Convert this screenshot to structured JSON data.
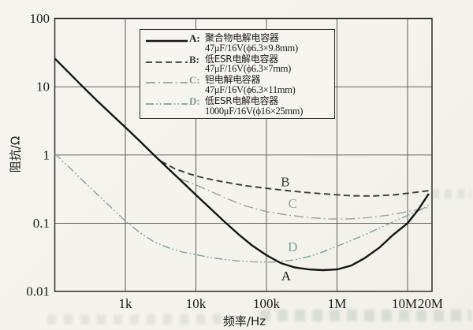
{
  "page": {
    "background": "#f6f5ef"
  },
  "chart_data": {
    "type": "line",
    "title": "",
    "xlabel": "频率/Hz",
    "ylabel": "阻抗/Ω",
    "x_scale": "log",
    "y_scale": "log",
    "xlim": [
      100,
      22000000
    ],
    "ylim": [
      0.01,
      100
    ],
    "grid": true,
    "legend_position": "top-center-inside",
    "x_ticks": [
      {
        "value": 1000,
        "label": "1k",
        "grid": true,
        "dx": 0
      },
      {
        "value": 10000,
        "label": "10k",
        "grid": true,
        "dx": 0
      },
      {
        "value": 100000,
        "label": "100k",
        "grid": true,
        "dx": 0
      },
      {
        "value": 1000000,
        "label": "1M",
        "grid": true,
        "dx": 0
      },
      {
        "value": 10000000,
        "label": "10M",
        "grid": true,
        "dx": -4
      },
      {
        "value": 20000000,
        "label": "20M",
        "grid": false,
        "dx": 2
      }
    ],
    "y_ticks": [
      {
        "value": 100,
        "label": "100",
        "grid": false
      },
      {
        "value": 10,
        "label": "10",
        "grid": true
      },
      {
        "value": 1,
        "label": "1",
        "grid": true
      },
      {
        "value": 0.1,
        "label": "0.1",
        "grid": true
      },
      {
        "value": 0.01,
        "label": "0.01",
        "grid": false
      }
    ],
    "series": [
      {
        "id": "D",
        "name": "低ESR电解电容器 1000μF/16V(ϕ16×25mm)",
        "color": "#7aa798",
        "style": "dashdotdot",
        "width": 1.4,
        "points": [
          [
            100,
            1.05
          ],
          [
            160,
            0.66
          ],
          [
            250,
            0.42
          ],
          [
            400,
            0.265
          ],
          [
            630,
            0.17
          ],
          [
            1000,
            0.108
          ],
          [
            1600,
            0.073
          ],
          [
            2500,
            0.054
          ],
          [
            4000,
            0.044
          ],
          [
            6300,
            0.038
          ],
          [
            10000,
            0.0345
          ],
          [
            16000,
            0.0315
          ],
          [
            25000,
            0.0295
          ],
          [
            40000,
            0.028
          ],
          [
            63000,
            0.0272
          ],
          [
            100000,
            0.0268
          ],
          [
            160000,
            0.0272
          ],
          [
            250000,
            0.029
          ],
          [
            400000,
            0.0325
          ],
          [
            630000,
            0.038
          ],
          [
            1000000,
            0.046
          ],
          [
            1600000,
            0.056
          ],
          [
            2500000,
            0.068
          ],
          [
            4000000,
            0.085
          ],
          [
            6300000,
            0.105
          ],
          [
            10000000,
            0.13
          ],
          [
            16000000,
            0.16
          ],
          [
            20000000,
            0.185
          ]
        ]
      },
      {
        "id": "C",
        "name": "钽电解电容器 47μF/16V(ϕ6.3×11mm)",
        "color": "#98a29b",
        "style": "dashdot",
        "width": 1.4,
        "points": [
          [
            6000,
            0.445
          ],
          [
            8000,
            0.4
          ],
          [
            12500,
            0.33
          ],
          [
            20000,
            0.265
          ],
          [
            32000,
            0.215
          ],
          [
            50000,
            0.18
          ],
          [
            100000,
            0.148
          ],
          [
            200000,
            0.132
          ],
          [
            400000,
            0.121
          ],
          [
            800000,
            0.115
          ],
          [
            1600000,
            0.116
          ],
          [
            3200000,
            0.122
          ],
          [
            6300000,
            0.135
          ],
          [
            10000000,
            0.148
          ],
          [
            20000000,
            0.17
          ]
        ]
      },
      {
        "id": "B",
        "name": "低ESR电解电容器 47μF/16V(ϕ6.3×7mm)",
        "color": "#3c3c3c",
        "style": "dashed",
        "width": 1.9,
        "points": [
          [
            3200,
            0.81
          ],
          [
            5000,
            0.63
          ],
          [
            8000,
            0.53
          ],
          [
            12500,
            0.465
          ],
          [
            20000,
            0.42
          ],
          [
            32000,
            0.385
          ],
          [
            50000,
            0.355
          ],
          [
            100000,
            0.325
          ],
          [
            200000,
            0.3
          ],
          [
            400000,
            0.28
          ],
          [
            800000,
            0.265
          ],
          [
            1600000,
            0.252
          ],
          [
            3200000,
            0.25
          ],
          [
            6300000,
            0.26
          ],
          [
            10000000,
            0.275
          ],
          [
            20000000,
            0.3
          ]
        ]
      },
      {
        "id": "A",
        "name": "聚合物电解电容器 47μF/16V(ϕ6.3×9.8mm)",
        "color": "#151515",
        "style": "solid",
        "width": 2.4,
        "points": [
          [
            100,
            26
          ],
          [
            150,
            17
          ],
          [
            250,
            10
          ],
          [
            400,
            6.2
          ],
          [
            700,
            3.6
          ],
          [
            1000,
            2.55
          ],
          [
            1600,
            1.6
          ],
          [
            2500,
            1.02
          ],
          [
            4000,
            0.64
          ],
          [
            6300,
            0.41
          ],
          [
            10000,
            0.26
          ],
          [
            16000,
            0.165
          ],
          [
            25000,
            0.107
          ],
          [
            40000,
            0.069
          ],
          [
            63000,
            0.047
          ],
          [
            100000,
            0.034
          ],
          [
            160000,
            0.026
          ],
          [
            250000,
            0.0225
          ],
          [
            400000,
            0.021
          ],
          [
            630000,
            0.0205
          ],
          [
            1000000,
            0.021
          ],
          [
            1600000,
            0.024
          ],
          [
            2500000,
            0.031
          ],
          [
            4000000,
            0.044
          ],
          [
            6300000,
            0.068
          ],
          [
            10000000,
            0.1
          ],
          [
            14000000,
            0.155
          ],
          [
            20000000,
            0.27
          ]
        ]
      }
    ],
    "curve_labels": [
      {
        "text": "B",
        "f": 185000,
        "z": 0.35,
        "color": "#3c3c3c"
      },
      {
        "text": "C",
        "f": 235000,
        "z": 0.167,
        "color": "#98a29b"
      },
      {
        "text": "D",
        "f": 235000,
        "z": 0.0388,
        "color": "#7aa798"
      },
      {
        "text": "A",
        "f": 190000,
        "z": 0.0145,
        "color": "#151515"
      }
    ]
  },
  "legend": {
    "entries": [
      {
        "key": "A:",
        "name": "聚合物电解电容器",
        "spec": "47μF/16V(ϕ6.3×9.8mm)",
        "style": "solid",
        "line_color": "#151515",
        "key_color": "#222222"
      },
      {
        "key": "B:",
        "name": "低ESR电解电容器",
        "spec": "47μF/16V(ϕ6.3×7mm)",
        "style": "dashed",
        "line_color": "#3c3c3c",
        "key_color": "#3a3a3a"
      },
      {
        "key": "C:",
        "name": "钽电解电容器",
        "spec": "47μF/16V(ϕ6.3×11mm)",
        "style": "dashdot",
        "line_color": "#98a29b",
        "key_color": "#8b968f"
      },
      {
        "key": "D:",
        "name": "低ESR电解电容器",
        "spec": "1000μF/16V(ϕ16×25mm)",
        "style": "dashdotdot",
        "line_color": "#7aa798",
        "key_color": "#74a08f"
      }
    ]
  }
}
